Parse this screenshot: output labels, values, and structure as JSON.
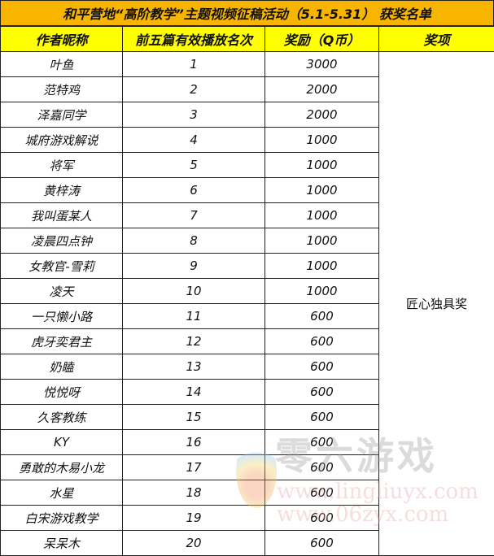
{
  "title": "和平营地“高阶教学”主题视频征稿活动（5.1-5.31） 获奖名单",
  "headers": [
    "作者昵称",
    "前五篇有效播放名次",
    "奖励（Q币）",
    "奖项"
  ],
  "rows": [
    [
      "叶鱼",
      "1",
      "3000"
    ],
    [
      "范特鸡",
      "2",
      "2000"
    ],
    [
      "泽嘉同学",
      "3",
      "2000"
    ],
    [
      "城府游戏解说",
      "4",
      "1000"
    ],
    [
      "将军",
      "5",
      "1000"
    ],
    [
      "黄梓涛",
      "6",
      "1000"
    ],
    [
      "我叫蛋某人",
      "7",
      "1000"
    ],
    [
      "凌晨四点钟",
      "8",
      "1000"
    ],
    [
      "女教官-雪莉",
      "9",
      "1000"
    ],
    [
      "凌天",
      "10",
      "1000"
    ],
    [
      "一只懒小路",
      "11",
      "600"
    ],
    [
      "虎牙奕君主",
      "12",
      "600"
    ],
    [
      "奶瞌",
      "13",
      "600"
    ],
    [
      "悦悦呀",
      "14",
      "600"
    ],
    [
      "久客教练",
      "15",
      "600"
    ],
    [
      "KY",
      "16",
      "600"
    ],
    [
      "勇敢的木易小龙",
      "17",
      "600"
    ],
    [
      "水星",
      "18",
      "600"
    ],
    [
      "白宋游戏教学",
      "19",
      "600"
    ],
    [
      "呆呆木",
      "20",
      "600"
    ]
  ],
  "prize": "匠心独具奖",
  "watermark": {
    "text": "零六游戏",
    "urls": [
      "www.lingliuyx.com",
      "www.06zyx.com"
    ]
  },
  "colors": {
    "title_bg": "#f7b500",
    "header_bg": "#ffff00"
  }
}
